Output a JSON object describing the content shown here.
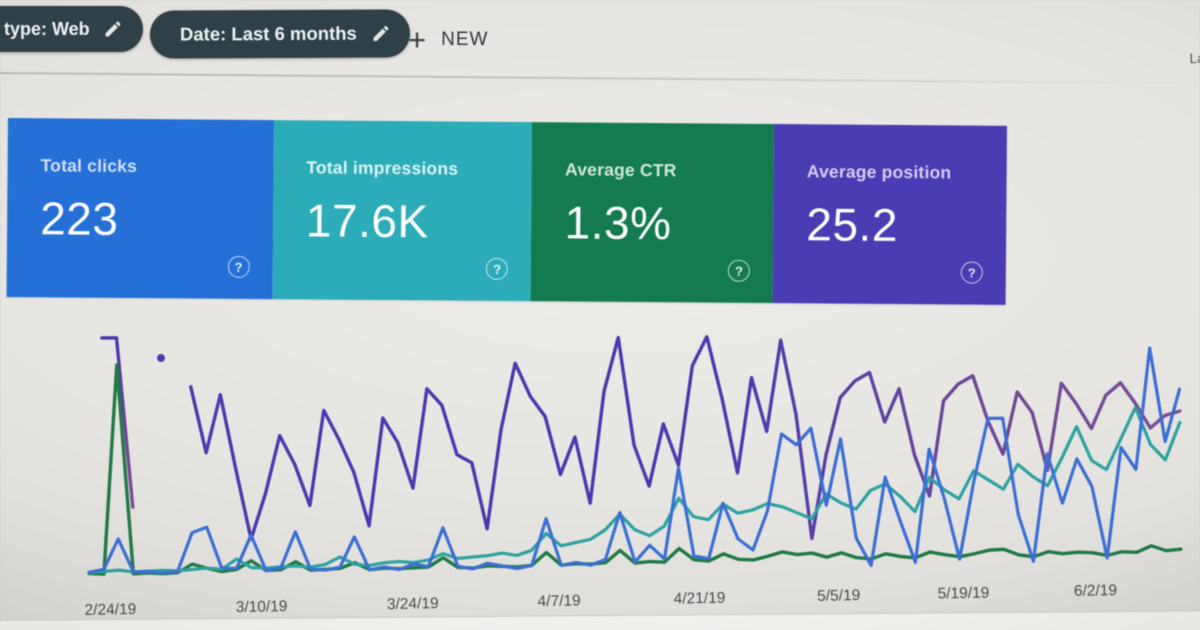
{
  "toolbar": {
    "chips": [
      {
        "label": "type: Web",
        "icon": "pencil-edit"
      },
      {
        "label": "Date: Last 6 months",
        "icon": "pencil-edit"
      }
    ],
    "new_button_label": "NEW",
    "plus_glyph": "+",
    "partial_text_top_right": "La"
  },
  "icons": {
    "help_glyph": "?"
  },
  "metric_cards": [
    {
      "title": "Total clicks",
      "value": "223",
      "color": "#2270dc",
      "title_color": "#cfdffa"
    },
    {
      "title": "Total impressions",
      "value": "17.6K",
      "color": "#28adba",
      "title_color": "#d9f4f4"
    },
    {
      "title": "Average CTR",
      "value": "1.3%",
      "color": "#117c4f",
      "title_color": "#cfe7da"
    },
    {
      "title": "Average position",
      "value": "25.2",
      "color": "#4a3cb6",
      "title_color": "#d4ccf2"
    }
  ],
  "chart_data": {
    "type": "line",
    "title": "",
    "xlabel": "",
    "ylabel": "",
    "grid": false,
    "legend": "none",
    "x_tick_labels": [
      "2/24/19",
      "3/10/19",
      "3/24/19",
      "4/7/19",
      "4/21/19",
      "5/5/19",
      "5/19/19",
      "6/2/19"
    ],
    "x_tick_positions_pct": [
      9.2,
      21.8,
      34.4,
      46.6,
      58.3,
      69.9,
      80.3,
      91.3
    ],
    "point_interval": "daily",
    "series": [
      {
        "name": "Average position",
        "color": "#4b39b2",
        "gradient": [
          [
            "0",
            "#4b39b2"
          ],
          [
            "0.55",
            "#4b39b2"
          ],
          [
            "0.8",
            "#6f4799"
          ],
          [
            "1",
            "#7e4d96"
          ]
        ],
        "ymax": 60,
        "width": 3.4,
        "values": [
          null,
          58,
          58,
          17,
          null,
          53,
          null,
          46,
          30,
          44,
          26,
          9,
          20,
          34,
          27,
          17,
          40,
          33,
          25,
          12,
          38,
          32,
          21,
          45,
          41,
          29,
          27,
          11,
          35,
          51,
          43,
          38,
          24,
          33,
          17,
          44,
          57,
          31,
          21,
          36,
          26,
          50,
          57,
          42,
          24,
          47,
          34,
          56,
          38,
          8,
          28,
          42,
          46,
          48,
          36,
          44,
          28,
          18,
          41,
          45,
          47,
          36,
          28,
          43,
          38,
          24,
          45,
          40,
          34,
          42,
          45,
          40,
          34,
          37,
          38
        ]
      },
      {
        "name": "Average CTR (%)",
        "color": "#1e7a45",
        "ymax": 35,
        "width": 3.4,
        "values": [
          0.6,
          0.5,
          30,
          0.5,
          0.6,
          0.5,
          0.6,
          1.8,
          1.2,
          0.7,
          1,
          2.2,
          0.8,
          0.9,
          2,
          0.8,
          0.9,
          1,
          1.8,
          0.8,
          1,
          0.9,
          1,
          1.1,
          2.4,
          1,
          0.9,
          1.2,
          1.1,
          1,
          1.2,
          3,
          1.2,
          1.4,
          1.3,
          1.5,
          3.2,
          1.4,
          1.6,
          1.5,
          3.4,
          1.8,
          1.6,
          2.6,
          1.8,
          1.7,
          2.2,
          2.8,
          2.4,
          2.6,
          2,
          2.6,
          1.9,
          1.7,
          2.4,
          2,
          1.8,
          2.6,
          2.2,
          1.9,
          2.3,
          2.8,
          2.9,
          2.1,
          1.8,
          2.5,
          2.2,
          2.4,
          2.3,
          1.9,
          2.4,
          2.3,
          3.2,
          2.5,
          2.7
        ]
      },
      {
        "name": "Total impressions",
        "color": "#2aa3a2",
        "ymax": 400,
        "width": 3.2,
        "values": [
          8,
          10,
          12,
          9,
          10,
          11,
          10,
          12,
          14,
          12,
          28,
          14,
          13,
          15,
          16,
          14,
          18,
          30,
          18,
          16,
          20,
          22,
          20,
          24,
          34,
          26,
          28,
          30,
          34,
          30,
          38,
          65,
          45,
          50,
          55,
          70,
          95,
          70,
          60,
          75,
          120,
          90,
          85,
          110,
          95,
          100,
          110,
          105,
          95,
          85,
          125,
          110,
          100,
          130,
          140,
          120,
          95,
          150,
          130,
          115,
          160,
          145,
          130,
          170,
          150,
          135,
          180,
          230,
          175,
          160,
          210,
          260,
          200,
          175,
          235
        ]
      },
      {
        "name": "Total clicks",
        "color": "#3a6fd8",
        "ymax": 9,
        "width": 3.2,
        "values": [
          0.2,
          0.3,
          1.4,
          0.2,
          0.2,
          0.15,
          0.2,
          1.6,
          1.8,
          0.3,
          0.3,
          1.5,
          0.2,
          0.3,
          1.6,
          0.25,
          0.2,
          0.3,
          1.4,
          0.2,
          0.3,
          0.2,
          0.4,
          0.3,
          1.7,
          0.3,
          0.2,
          0.4,
          0.3,
          0.2,
          0.3,
          2,
          0.3,
          0.4,
          0.3,
          0.5,
          2.2,
          0.4,
          1,
          0.5,
          3.8,
          0.6,
          0.5,
          2.5,
          1.2,
          0.8,
          2.2,
          5,
          4.6,
          5.2,
          2.4,
          4.8,
          1.2,
          0.2,
          3.4,
          1.8,
          0.3,
          4.4,
          2.6,
          0.4,
          3.2,
          5.5,
          5.5,
          2,
          0.3,
          4.2,
          2.4,
          4,
          3,
          0.4,
          4.4,
          3.6,
          8,
          4.6,
          6.5
        ]
      }
    ]
  }
}
